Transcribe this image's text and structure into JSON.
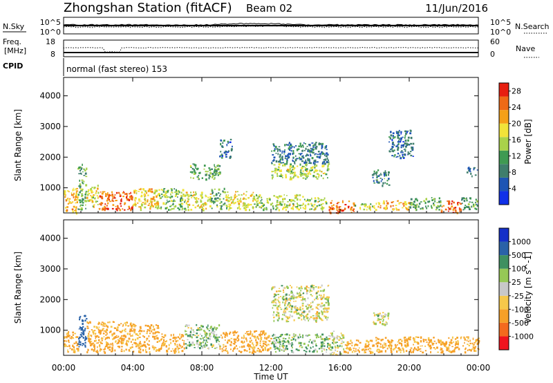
{
  "header": {
    "station": "Zhongshan Station (fitACF)",
    "beam": "Beam 02",
    "date": "11/Jun/2016"
  },
  "summary": {
    "nsky": {
      "label": "N.Sky",
      "ticks": [
        "10^5",
        "10^0"
      ]
    },
    "freq": {
      "label_top": "Freq.",
      "label_bottom": "[MHz]",
      "ticks": [
        "18",
        "8"
      ]
    },
    "nsearch": {
      "label": "N.Search",
      "ticks": [
        "10^5",
        "10^0"
      ]
    },
    "nave": {
      "label": "Nave",
      "ticks": [
        "60",
        "0"
      ]
    },
    "cpid": {
      "label": "CPID",
      "text": "normal (fast stereo) 153"
    }
  },
  "colors": {
    "power_scale": [
      "#1030e8",
      "#1e55b4",
      "#3f7e6c",
      "#3f9a52",
      "#a9d24a",
      "#f1e33a",
      "#f5a018",
      "#ef6a16",
      "#e71e10"
    ],
    "velocity_scale": [
      "#f0141e",
      "#f46a1e",
      "#f6a028",
      "#f6c84a",
      "#c8c8c8",
      "#96c856",
      "#3f9060",
      "#2a62a8",
      "#1530c8"
    ]
  },
  "chart_data": [
    {
      "type": "heatmap",
      "quantity": "power",
      "ylabel": "Slant Range [km]",
      "yticks": [
        1000,
        2000,
        3000,
        4000
      ],
      "ylim": [
        180,
        4600
      ],
      "xlim": [
        0,
        24
      ],
      "colorbar": {
        "label": "Power [dB]",
        "ticks": [
          4,
          8,
          12,
          16,
          20,
          24,
          28
        ],
        "range": [
          0,
          30
        ]
      },
      "cells": [
        [
          0.0,
          0.8,
          200,
          1000,
          22
        ],
        [
          0.8,
          1.3,
          300,
          1800,
          12
        ],
        [
          1.3,
          2.0,
          400,
          1100,
          18
        ],
        [
          2.0,
          4.0,
          300,
          900,
          26
        ],
        [
          4.0,
          5.5,
          300,
          1000,
          20
        ],
        [
          5.5,
          7.0,
          300,
          1000,
          14
        ],
        [
          7.0,
          8.5,
          300,
          900,
          18
        ],
        [
          8.5,
          9.3,
          300,
          1000,
          12
        ],
        [
          9.3,
          11.0,
          300,
          900,
          18
        ],
        [
          11.0,
          12.0,
          300,
          800,
          14
        ],
        [
          12.0,
          14.0,
          300,
          800,
          16
        ],
        [
          14.0,
          15.3,
          300,
          700,
          16
        ],
        [
          15.3,
          16.8,
          200,
          600,
          26
        ],
        [
          16.8,
          18.0,
          300,
          500,
          16
        ],
        [
          18.0,
          20.0,
          300,
          600,
          22
        ],
        [
          20.0,
          21.8,
          300,
          700,
          12
        ],
        [
          21.8,
          23.0,
          200,
          600,
          26
        ],
        [
          23.0,
          24.0,
          300,
          700,
          10
        ],
        [
          7.3,
          9.0,
          1300,
          1800,
          12
        ],
        [
          9.0,
          9.8,
          2000,
          2600,
          6
        ],
        [
          12.0,
          15.3,
          1300,
          1800,
          16
        ],
        [
          12.0,
          15.3,
          1800,
          2500,
          7
        ],
        [
          17.8,
          18.8,
          1100,
          1600,
          9
        ],
        [
          18.8,
          20.2,
          2000,
          2900,
          6
        ],
        [
          23.3,
          24.0,
          1400,
          1700,
          6
        ]
      ]
    },
    {
      "type": "heatmap",
      "quantity": "velocity",
      "xlabel": "Time UT",
      "ylabel": "Slant Range [km]",
      "xticks": [
        "00:00",
        "04:00",
        "08:00",
        "12:00",
        "16:00",
        "20:00",
        "00:00"
      ],
      "yticks": [
        1000,
        2000,
        3000,
        4000
      ],
      "ylim": [
        180,
        4600
      ],
      "xlim": [
        0,
        24
      ],
      "colorbar": {
        "label": "Velocity [m s^-1]",
        "ticks": [
          "1000",
          "500",
          "100",
          "25",
          "-25",
          "-100",
          "-500",
          "-1000"
        ]
      },
      "cells": [
        [
          0.0,
          0.8,
          300,
          1000,
          -100
        ],
        [
          0.8,
          1.3,
          400,
          1500,
          500
        ],
        [
          1.3,
          4.0,
          300,
          1300,
          -100
        ],
        [
          4.0,
          5.5,
          300,
          1200,
          -100
        ],
        [
          5.5,
          7.0,
          300,
          900,
          -100
        ],
        [
          7.0,
          9.0,
          400,
          1200,
          50
        ],
        [
          9.0,
          12.0,
          300,
          1000,
          -100
        ],
        [
          12.0,
          15.3,
          1300,
          2500,
          0
        ],
        [
          12.0,
          15.3,
          300,
          900,
          50
        ],
        [
          15.3,
          16.2,
          200,
          1000,
          0
        ],
        [
          16.2,
          18.0,
          300,
          700,
          -100
        ],
        [
          17.8,
          18.8,
          1200,
          1600,
          0
        ],
        [
          18.0,
          20.0,
          300,
          800,
          -100
        ],
        [
          20.0,
          22.0,
          300,
          800,
          -100
        ],
        [
          22.0,
          24.0,
          300,
          800,
          -100
        ]
      ]
    }
  ]
}
